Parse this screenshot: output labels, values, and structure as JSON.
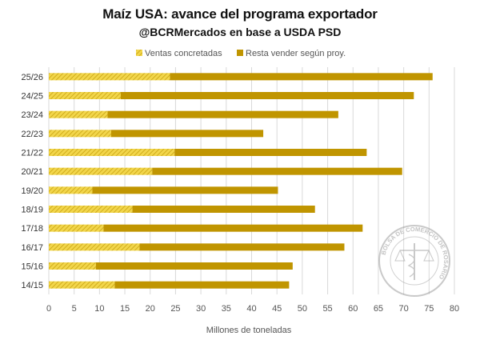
{
  "title": "Maíz USA: avance del programa exportador",
  "subtitle": "@BCRMercados en base a USDA PSD",
  "colors": {
    "sold": "#f2d64b",
    "sold_stripe": "#c9a311",
    "remaining": "#c09500",
    "grid": "#d9d9d9"
  },
  "chart_data": {
    "type": "bar",
    "orientation": "horizontal",
    "stacked": true,
    "title": "Maíz USA: avance del programa exportador",
    "subtitle": "@BCRMercados en base a USDA PSD",
    "xlabel": "Millones de toneladas",
    "ylabel": "",
    "xlim": [
      0,
      80
    ],
    "xticks": [
      "0",
      "5",
      "10",
      "15",
      "20",
      "25",
      "30",
      "35",
      "40",
      "45",
      "50",
      "55",
      "60",
      "65",
      "70",
      "75",
      "80"
    ],
    "grid": "vertical",
    "legend_position": "top",
    "categories": [
      "25/26",
      "24/25",
      "23/24",
      "22/23",
      "21/22",
      "20/21",
      "19/20",
      "18/19",
      "17/18",
      "16/17",
      "15/16",
      "14/15"
    ],
    "series": [
      {
        "name": "Ventas concretadas",
        "values": [
          23.9,
          14.2,
          11.6,
          12.3,
          24.8,
          20.4,
          8.6,
          16.5,
          10.8,
          17.9,
          9.3,
          13.0
        ]
      },
      {
        "name": "Resta vender según proy.",
        "values": [
          51.8,
          57.8,
          45.5,
          30.0,
          37.9,
          49.3,
          36.6,
          36.0,
          51.1,
          40.4,
          38.8,
          34.4
        ]
      }
    ]
  },
  "watermark": {
    "text": "BOLSA DE COMERCIO DE ROSARIO"
  }
}
